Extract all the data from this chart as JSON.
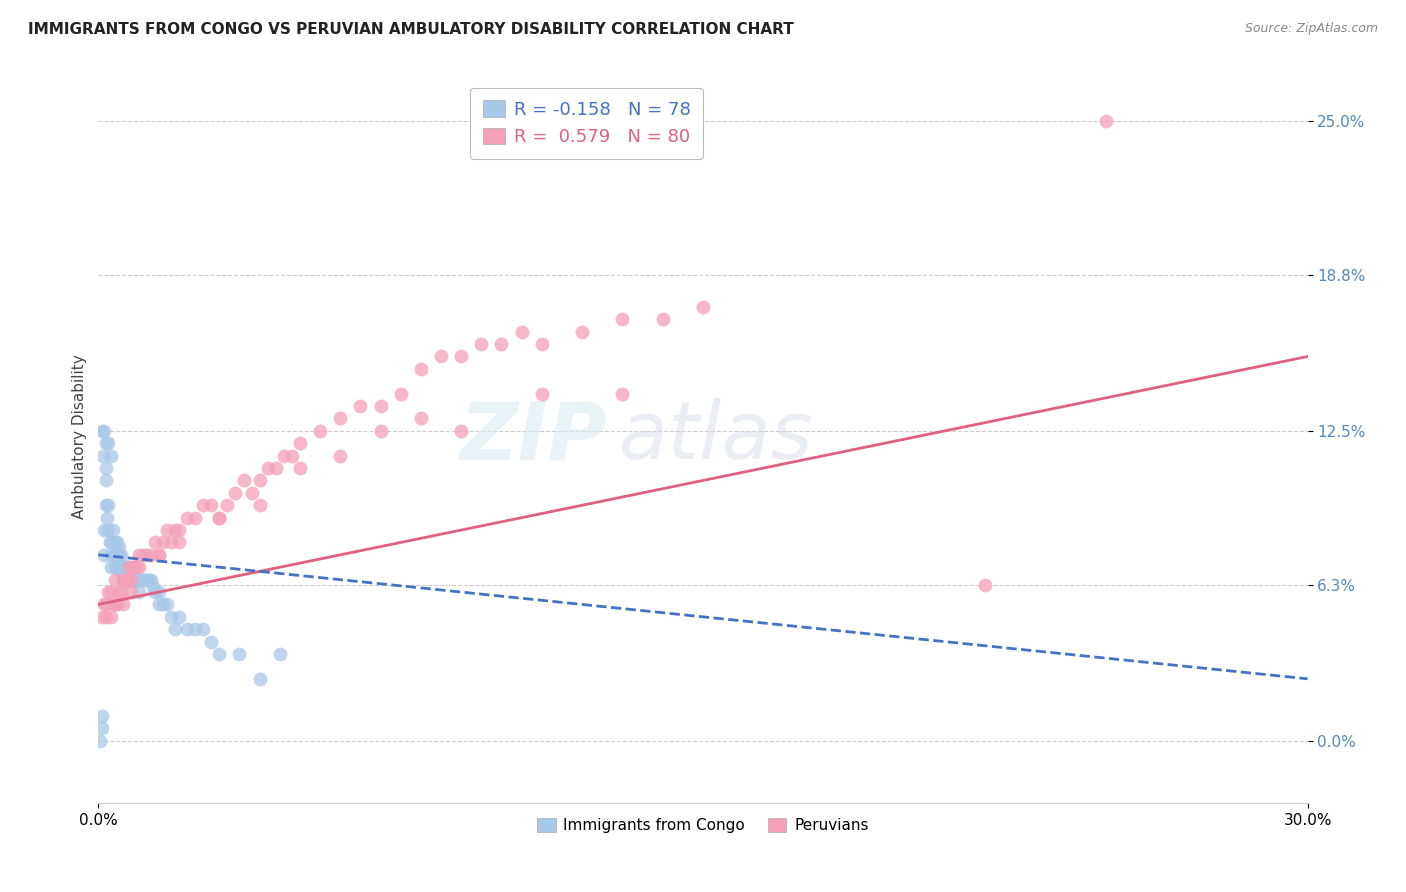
{
  "title": "IMMIGRANTS FROM CONGO VS PERUVIAN AMBULATORY DISABILITY CORRELATION CHART",
  "source": "Source: ZipAtlas.com",
  "ylabel": "Ambulatory Disability",
  "ytick_values": [
    0.0,
    6.3,
    12.5,
    18.8,
    25.0
  ],
  "xlim": [
    0.0,
    30.0
  ],
  "ylim": [
    -2.5,
    27.0
  ],
  "congo_R": -0.158,
  "congo_N": 78,
  "peru_R": 0.579,
  "peru_N": 80,
  "congo_color": "#a8c8e8",
  "peru_color": "#f4a0b8",
  "congo_line_color": "#4472c4",
  "peru_line_color": "#e06080",
  "watermark_zip": "ZIP",
  "watermark_atlas": "atlas",
  "legend_label_congo": "Immigrants from Congo",
  "legend_label_peru": "Peruvians",
  "congo_points_x": [
    0.05,
    0.08,
    0.1,
    0.12,
    0.15,
    0.15,
    0.18,
    0.2,
    0.2,
    0.22,
    0.25,
    0.25,
    0.28,
    0.3,
    0.3,
    0.32,
    0.35,
    0.38,
    0.4,
    0.4,
    0.42,
    0.45,
    0.45,
    0.48,
    0.5,
    0.5,
    0.52,
    0.55,
    0.55,
    0.58,
    0.6,
    0.62,
    0.65,
    0.68,
    0.7,
    0.72,
    0.75,
    0.78,
    0.8,
    0.82,
    0.85,
    0.88,
    0.9,
    0.92,
    0.95,
    0.98,
    1.0,
    1.05,
    1.1,
    1.15,
    1.2,
    1.25,
    1.3,
    1.35,
    1.4,
    1.5,
    1.6,
    1.7,
    1.8,
    1.9,
    2.0,
    2.2,
    2.4,
    2.6,
    2.8,
    3.0,
    3.5,
    4.0,
    4.5,
    0.1,
    0.15,
    0.2,
    0.25,
    0.3,
    0.5,
    0.7,
    1.0,
    1.5
  ],
  "congo_points_y": [
    0.0,
    0.5,
    12.5,
    11.5,
    7.5,
    8.5,
    10.5,
    11.0,
    9.5,
    9.0,
    8.5,
    9.5,
    8.0,
    7.5,
    8.0,
    7.0,
    8.5,
    7.5,
    7.0,
    8.0,
    7.5,
    7.0,
    8.0,
    7.5,
    7.0,
    7.5,
    7.2,
    6.8,
    7.5,
    7.0,
    6.5,
    7.0,
    6.5,
    7.0,
    6.5,
    6.8,
    6.5,
    6.5,
    6.5,
    6.5,
    6.5,
    6.5,
    6.5,
    6.5,
    6.5,
    6.5,
    6.5,
    6.5,
    6.5,
    6.5,
    6.5,
    6.5,
    6.5,
    6.2,
    6.0,
    6.0,
    5.5,
    5.5,
    5.0,
    4.5,
    5.0,
    4.5,
    4.5,
    4.5,
    4.0,
    3.5,
    3.5,
    2.5,
    3.5,
    1.0,
    12.5,
    12.0,
    12.0,
    11.5,
    7.8,
    7.0,
    6.0,
    5.5
  ],
  "peru_points_x": [
    0.1,
    0.15,
    0.2,
    0.25,
    0.3,
    0.35,
    0.4,
    0.45,
    0.5,
    0.55,
    0.6,
    0.65,
    0.7,
    0.75,
    0.8,
    0.85,
    0.9,
    0.95,
    1.0,
    1.1,
    1.2,
    1.3,
    1.4,
    1.5,
    1.6,
    1.7,
    1.8,
    1.9,
    2.0,
    2.2,
    2.4,
    2.6,
    2.8,
    3.0,
    3.2,
    3.4,
    3.6,
    3.8,
    4.0,
    4.2,
    4.4,
    4.6,
    4.8,
    5.0,
    5.5,
    6.0,
    6.5,
    7.0,
    7.5,
    8.0,
    8.5,
    9.0,
    9.5,
    10.0,
    10.5,
    11.0,
    12.0,
    13.0,
    14.0,
    15.0,
    0.2,
    0.4,
    0.6,
    0.8,
    1.0,
    1.5,
    2.0,
    3.0,
    4.0,
    5.0,
    6.0,
    7.0,
    8.0,
    9.0,
    11.0,
    13.0,
    22.0,
    25.0,
    0.3,
    0.7
  ],
  "peru_points_y": [
    5.0,
    5.5,
    5.5,
    6.0,
    6.0,
    5.5,
    6.5,
    5.5,
    6.0,
    6.0,
    6.5,
    6.5,
    6.5,
    7.0,
    6.5,
    7.0,
    7.0,
    7.0,
    7.5,
    7.5,
    7.5,
    7.5,
    8.0,
    7.5,
    8.0,
    8.5,
    8.0,
    8.5,
    8.5,
    9.0,
    9.0,
    9.5,
    9.5,
    9.0,
    9.5,
    10.0,
    10.5,
    10.0,
    10.5,
    11.0,
    11.0,
    11.5,
    11.5,
    12.0,
    12.5,
    13.0,
    13.5,
    13.5,
    14.0,
    15.0,
    15.5,
    15.5,
    16.0,
    16.0,
    16.5,
    16.0,
    16.5,
    17.0,
    17.0,
    17.5,
    5.0,
    5.5,
    5.5,
    6.0,
    7.0,
    7.5,
    8.0,
    9.0,
    9.5,
    11.0,
    11.5,
    12.5,
    13.0,
    12.5,
    14.0,
    14.0,
    6.3,
    25.0,
    5.0,
    6.5
  ],
  "peru_line_x_start": 0.0,
  "peru_line_x_end": 30.0,
  "peru_line_y_start": 5.5,
  "peru_line_y_end": 15.5,
  "congo_line_x_start": 0.0,
  "congo_line_x_end": 30.0,
  "congo_line_y_start": 7.5,
  "congo_line_y_end": 2.5
}
